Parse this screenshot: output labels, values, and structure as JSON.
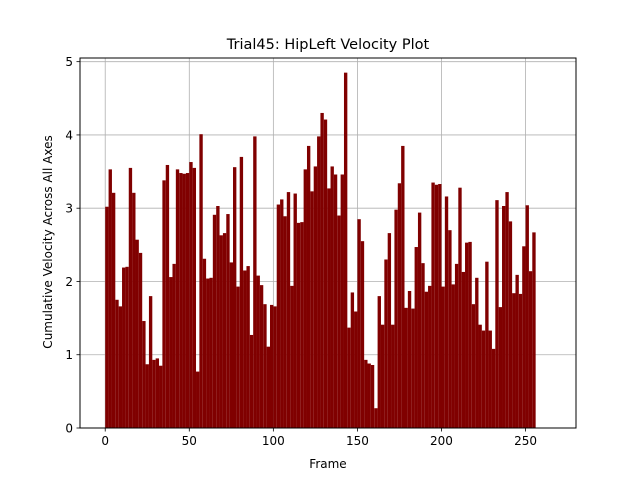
{
  "chart_data": {
    "type": "bar",
    "title": "Trial45: HipLeft Velocity Plot",
    "xlabel": "Frame",
    "ylabel": "Cumulative Velocity Across All Axes",
    "xlim": [
      -15,
      280
    ],
    "ylim": [
      0,
      5.05
    ],
    "xticks": [
      0,
      50,
      100,
      150,
      200,
      250
    ],
    "yticks": [
      0,
      1,
      2,
      3,
      4,
      5
    ],
    "grid": true,
    "bar_color": "#800000",
    "series": [
      {
        "x_start": 0,
        "x_step": 2,
        "values": [
          3.02,
          3.53,
          3.21,
          1.75,
          1.66,
          2.19,
          2.2,
          3.55,
          3.21,
          2.57,
          2.39,
          1.46,
          0.87,
          1.8,
          0.93,
          0.95,
          0.85,
          3.38,
          3.59,
          2.06,
          2.24,
          3.53,
          3.48,
          3.47,
          3.48,
          3.63,
          3.55,
          0.77,
          4.01,
          2.31,
          2.04,
          2.05,
          2.91,
          3.03,
          2.63,
          2.66,
          2.92,
          2.26,
          3.56,
          1.93,
          3.7,
          2.15,
          2.21,
          1.27,
          3.98,
          2.08,
          1.95,
          1.69,
          1.11,
          1.68,
          1.66,
          3.05,
          3.12,
          2.89,
          3.22,
          1.94,
          3.2,
          2.8,
          2.81,
          3.53,
          3.85,
          3.23,
          3.57,
          3.98,
          4.3,
          4.21,
          3.27,
          3.57,
          3.46,
          2.9,
          3.46,
          4.85,
          1.37,
          1.85,
          1.59,
          2.85,
          2.55,
          0.93,
          0.88,
          0.86,
          0.27,
          1.8,
          1.41,
          2.3,
          2.66,
          1.41,
          2.98,
          3.34,
          3.85,
          1.64,
          1.87,
          1.63,
          2.47,
          2.94,
          2.25,
          1.86,
          1.94,
          3.35,
          3.32,
          3.33,
          1.93,
          3.16,
          2.7,
          1.96,
          2.24,
          3.28,
          2.13,
          2.53,
          2.54,
          1.69,
          2.05,
          1.41,
          1.33,
          2.27,
          1.33,
          1.08,
          3.11,
          1.65,
          3.03,
          3.22,
          2.82,
          1.84,
          2.09,
          1.83,
          2.48,
          3.04,
          2.14,
          2.67
        ]
      }
    ]
  }
}
